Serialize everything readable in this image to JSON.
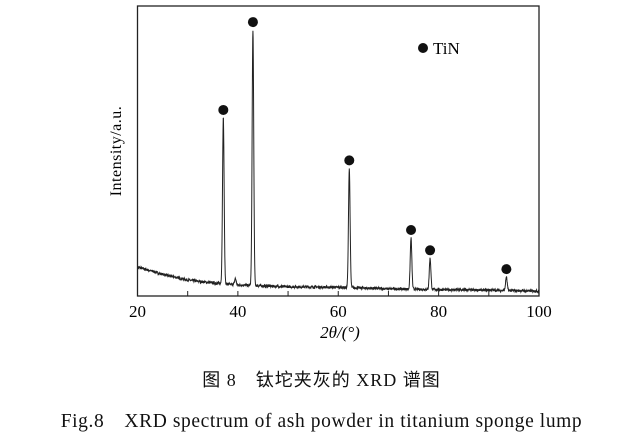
{
  "chart_data": {
    "type": "line",
    "xlabel": "2θ/(°)",
    "ylabel": "Intensity/a.u.",
    "xlim": [
      20,
      100
    ],
    "ylim": [
      0,
      100
    ],
    "x_ticks": [
      20,
      40,
      60,
      80,
      100
    ],
    "x_minor_ticks": [
      30,
      50,
      70,
      90
    ],
    "grid": false,
    "legend": {
      "position": "top-right",
      "entries": [
        {
          "marker": "filled-circle",
          "label": "TiN"
        }
      ]
    },
    "series": [
      {
        "color": "#222222",
        "baseline": [
          [
            20,
            10
          ],
          [
            25,
            7.5
          ],
          [
            30,
            5.5
          ],
          [
            35,
            4.5
          ],
          [
            40,
            3.8
          ],
          [
            50,
            3.2
          ],
          [
            60,
            3
          ],
          [
            70,
            2.5
          ],
          [
            80,
            2.2
          ],
          [
            90,
            2
          ],
          [
            100,
            1.7
          ]
        ],
        "peaks": [
          {
            "x": 37.1,
            "y": 61.4,
            "phase": "TiN"
          },
          {
            "x": 39.5,
            "y": 6,
            "phase": ""
          },
          {
            "x": 43.0,
            "y": 91.7,
            "phase": "TiN"
          },
          {
            "x": 62.2,
            "y": 44,
            "phase": "TiN"
          },
          {
            "x": 74.5,
            "y": 20,
            "phase": "TiN"
          },
          {
            "x": 78.3,
            "y": 13,
            "phase": "TiN"
          },
          {
            "x": 93.5,
            "y": 6.5,
            "phase": "TiN"
          }
        ]
      }
    ]
  },
  "captions": {
    "cn": "图 8　钛坨夹灰的 XRD 谱图",
    "en": "Fig.8　XRD spectrum of ash powder in titanium sponge lump"
  }
}
